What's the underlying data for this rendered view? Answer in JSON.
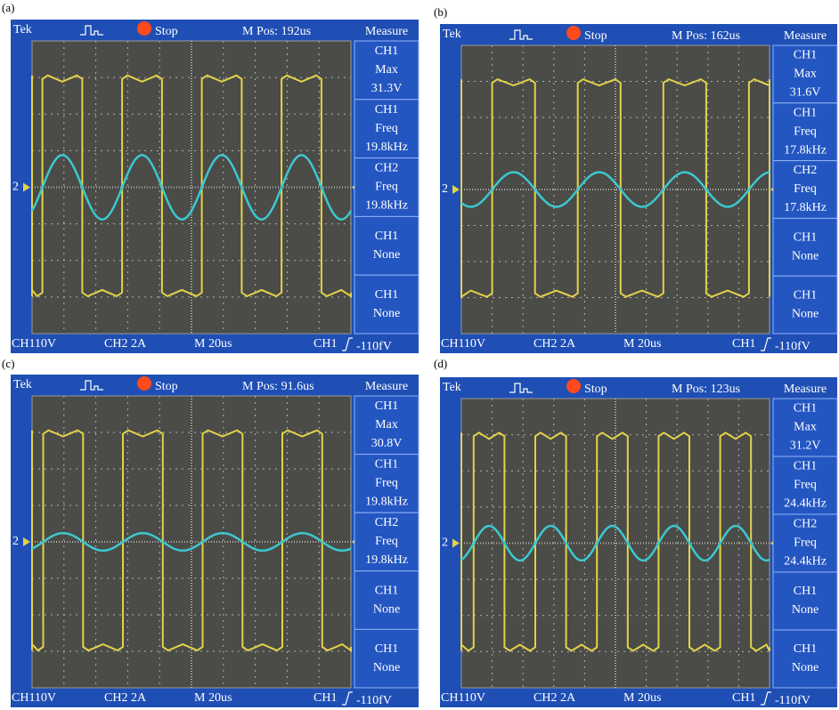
{
  "panels": [
    {
      "label": "(a)",
      "header": {
        "brand": "Tek",
        "status": "Stop",
        "position": "M Pos: 192us"
      },
      "marker": "2",
      "menu": {
        "title": "Measure",
        "items": [
          [
            "CH1",
            "Max",
            "31.3V"
          ],
          [
            "CH1",
            "Freq",
            "19.8kHz"
          ],
          [
            "CH2",
            "Freq",
            "19.8kHz"
          ],
          [
            "CH1",
            "None"
          ],
          [
            "CH1",
            "None"
          ]
        ]
      },
      "footer": [
        "CH110V",
        "CH2 2A",
        "M 20us",
        "CH1",
        "-110fV"
      ]
    },
    {
      "label": "(b)",
      "header": {
        "brand": "Tek",
        "status": "Stop",
        "position": "M Pos: 162us"
      },
      "marker": "2",
      "menu": {
        "title": "Measure",
        "items": [
          [
            "CH1",
            "Max",
            "31.6V"
          ],
          [
            "CH1",
            "Freq",
            "17.8kHz"
          ],
          [
            "CH2",
            "Freq",
            "17.8kHz"
          ],
          [
            "CH1",
            "None"
          ],
          [
            "CH1",
            "None"
          ]
        ]
      },
      "footer": [
        "CH110V",
        "CH2 2A",
        "M 20us",
        "CH1",
        "-110fV"
      ]
    },
    {
      "label": "(c)",
      "header": {
        "brand": "Tek",
        "status": "Stop",
        "position": "M Pos: 91.6us"
      },
      "marker": "2",
      "menu": {
        "title": "Measure",
        "items": [
          [
            "CH1",
            "Max",
            "30.8V"
          ],
          [
            "CH1",
            "Freq",
            "19.8kHz"
          ],
          [
            "CH2",
            "Freq",
            "19.8kHz"
          ],
          [
            "CH1",
            "None"
          ],
          [
            "CH1",
            "None"
          ]
        ]
      },
      "footer": [
        "CH110V",
        "CH2 2A",
        "M 20us",
        "CH1",
        "-110fV"
      ]
    },
    {
      "label": "(d)",
      "header": {
        "brand": "Tek",
        "status": "Stop",
        "position": "M Pos: 123us"
      },
      "marker": "2",
      "menu": {
        "title": "Measure",
        "items": [
          [
            "CH1",
            "Max",
            "31.2V"
          ],
          [
            "CH1",
            "Freq",
            "24.4kHz"
          ],
          [
            "CH2",
            "Freq",
            "24.4kHz"
          ],
          [
            "CH1",
            "None"
          ],
          [
            "CH1",
            "None"
          ]
        ]
      },
      "footer": [
        "CH110V",
        "CH2 2A",
        "M 20us",
        "CH1",
        "-110fV"
      ]
    }
  ]
}
